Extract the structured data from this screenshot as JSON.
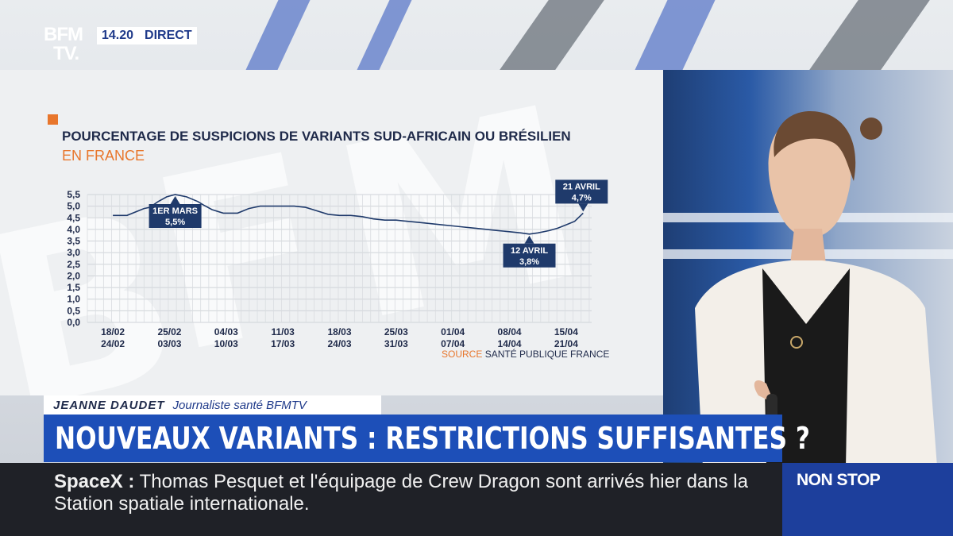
{
  "channel": {
    "logo_line1": "BFM",
    "logo_line2": "TV.",
    "time": "14.20",
    "live_label": "DIRECT"
  },
  "chart_data": {
    "type": "line",
    "title": "POURCENTAGE DE SUSPICIONS DE VARIANTS SUD-AFRICAIN OU BRÉSILIEN",
    "subtitle": "EN FRANCE",
    "ylim": [
      0,
      5.5
    ],
    "y_ticks": [
      "0,0",
      "0,5",
      "1,0",
      "1,5",
      "2,0",
      "2,5",
      "3,0",
      "3,5",
      "4,0",
      "4,5",
      "5,0",
      "5,5"
    ],
    "x_ticks": [
      {
        "top": "18/02",
        "bottom": "24/02"
      },
      {
        "top": "25/02",
        "bottom": "03/03"
      },
      {
        "top": "04/03",
        "bottom": "10/03"
      },
      {
        "top": "11/03",
        "bottom": "17/03"
      },
      {
        "top": "18/03",
        "bottom": "24/03"
      },
      {
        "top": "25/03",
        "bottom": "31/03"
      },
      {
        "top": "01/04",
        "bottom": "07/04"
      },
      {
        "top": "08/04",
        "bottom": "14/04"
      },
      {
        "top": "15/04",
        "bottom": "21/04"
      }
    ],
    "series": [
      {
        "name": "Suspicions de variants",
        "x": [
          0,
          0.25,
          0.45,
          0.55,
          0.65,
          0.8,
          0.95,
          1.1,
          1.3,
          1.5,
          1.6,
          1.75,
          1.95,
          2.2,
          2.4,
          2.6,
          2.8,
          3.0,
          3.2,
          3.4,
          3.6,
          3.8,
          4.0,
          4.2,
          4.4,
          4.6,
          4.8,
          5.0,
          5.2,
          5.4,
          5.6,
          5.8,
          6.0,
          6.2,
          6.4,
          6.6,
          6.8,
          7.0,
          7.2,
          7.35,
          7.5,
          7.7,
          7.85,
          8.0,
          8.15,
          8.3
        ],
        "values": [
          4.6,
          4.6,
          4.8,
          4.9,
          4.95,
          5.2,
          5.4,
          5.5,
          5.4,
          5.2,
          5.05,
          4.85,
          4.7,
          4.7,
          4.9,
          5.0,
          5.0,
          5.0,
          5.0,
          4.95,
          4.8,
          4.65,
          4.6,
          4.6,
          4.55,
          4.45,
          4.4,
          4.4,
          4.35,
          4.3,
          4.25,
          4.2,
          4.15,
          4.1,
          4.05,
          4.0,
          3.95,
          3.9,
          3.85,
          3.8,
          3.85,
          3.95,
          4.05,
          4.2,
          4.35,
          4.7
        ]
      }
    ],
    "annotations": [
      {
        "label": "1ER MARS",
        "value": "5,5%",
        "x": 1.1,
        "y": 5.5,
        "side": "below"
      },
      {
        "label": "12 AVRIL",
        "value": "3,8%",
        "x": 7.35,
        "y": 3.8,
        "side": "below"
      },
      {
        "label": "21 AVRIL",
        "value": "4,7%",
        "x": 8.3,
        "y": 4.7,
        "side": "above"
      }
    ],
    "source_label": "SOURCE",
    "source_value": "SANTÉ PUBLIQUE FRANCE",
    "grid": true
  },
  "lower_third": {
    "name": "JEANNE DAUDET",
    "role": "Journaliste santé BFMTV",
    "headline": "NOUVEAUX VARIANTS : RESTRICTIONS SUFFISANTES ?"
  },
  "ticker": {
    "tag": "SpaceX :",
    "text": "Thomas Pesquet et l'équipage de Crew Dragon sont arrivés hier dans la Station spatiale internationale."
  },
  "nonstop": {
    "label": "NON STOP"
  },
  "colors": {
    "brand_blue": "#1d4fb8",
    "accent_orange": "#e8762c",
    "dark_navy": "#1f2a4a",
    "ticker_bg": "#1f2127"
  }
}
